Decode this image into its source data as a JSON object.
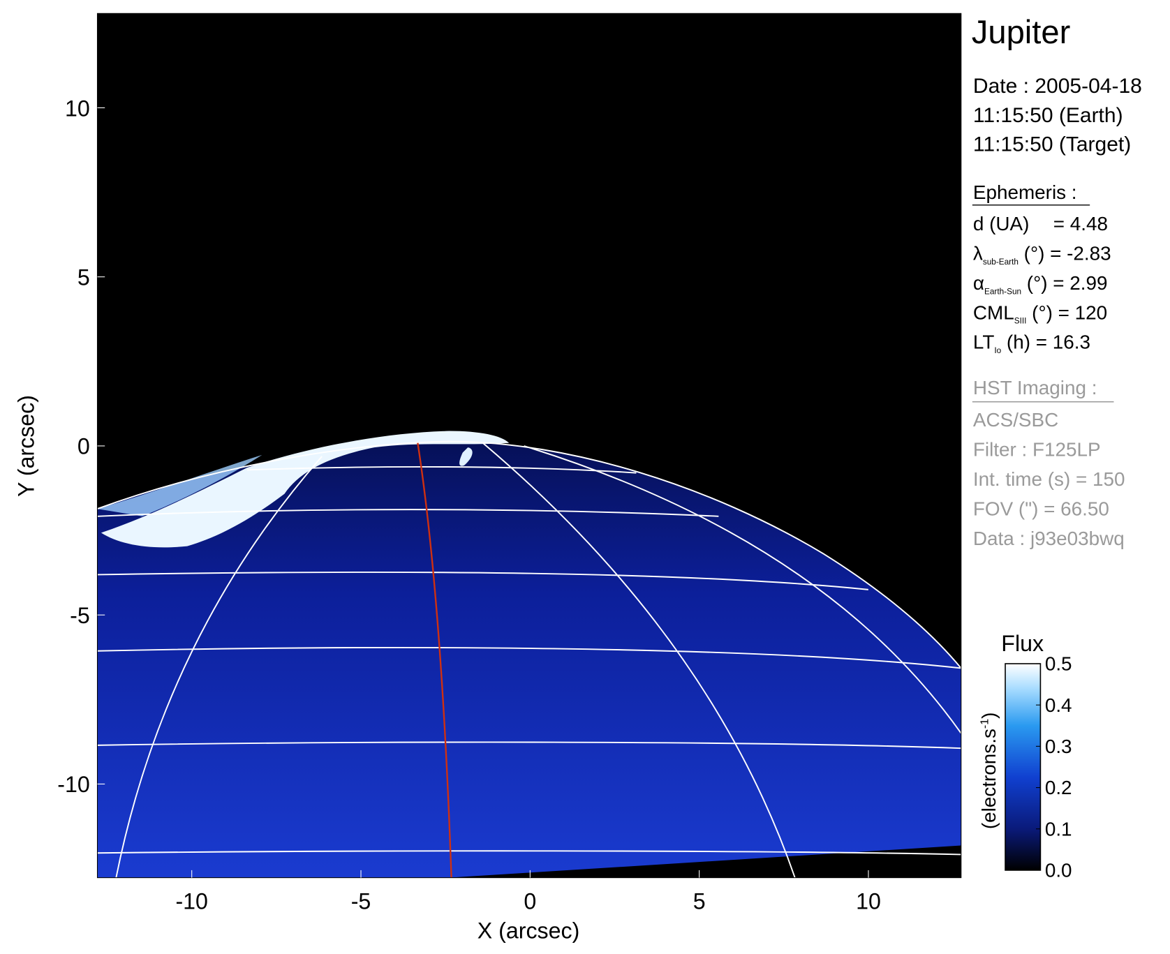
{
  "chart_data": {
    "type": "image",
    "title": "Jupiter",
    "xlabel": "X (arcsec)",
    "ylabel": "Y (arcsec)",
    "xlim": [
      -12.79,
      12.74
    ],
    "ylim": [
      -12.77,
      12.79
    ],
    "xticks": [
      -10,
      -5,
      0,
      5,
      10
    ],
    "yticks": [
      -10,
      -5,
      0,
      5,
      10
    ],
    "colorbar": {
      "title": "Flux",
      "label": {
        "text": "(electrons.s",
        "sup": "-1",
        "end": ")"
      },
      "clim": [
        0,
        0.5
      ],
      "ticks": [
        {
          "value": 0,
          "label": "0.0"
        },
        0.1,
        0.2,
        0.3,
        0.4,
        0.5
      ]
    },
    "info": {
      "date": "Date : 2005-04-18",
      "time_earth": "11:15:50 (Earth)",
      "time_target": "11:15:50 (Target)",
      "ephemeris_title": "Ephemeris :",
      "ephemeris": [
        {
          "main": "d (UA)",
          "rest": "= 4.48"
        },
        {
          "main": "λ",
          "sub": "sub-Earth",
          "rest": " (°) = -2.83"
        },
        {
          "main": "α",
          "sub": "Earth-Sun",
          "rest": " (°) = 2.99"
        },
        {
          "main": "CML",
          "sub": "SIII",
          "rest": " (°) = 120"
        },
        {
          "main": "LT",
          "sub": "Io",
          "rest": " (h) = 16.3"
        }
      ],
      "imaging_title": "HST Imaging :",
      "imaging": [
        "ACS/SBC",
        "Filter : F125LP",
        "Int. time (s) = 150",
        "FOV (\") = 66.50",
        "Data : j93e03bwq"
      ]
    }
  }
}
